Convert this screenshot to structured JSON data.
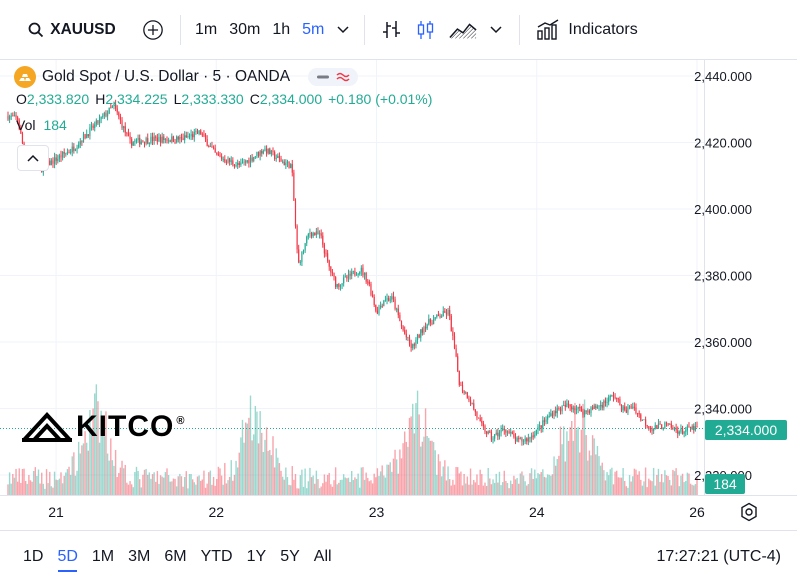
{
  "toolbar": {
    "symbol": "XAUUSD",
    "intervals": [
      "1m",
      "30m",
      "1h",
      "5m"
    ],
    "active_interval": "5m",
    "indicators_label": "Indicators"
  },
  "legend": {
    "title": "Gold Spot / U.S. Dollar · 5 · OANDA",
    "open_label": "O",
    "open": "2,333.820",
    "high_label": "H",
    "high": "2,334.225",
    "low_label": "L",
    "low": "2,333.330",
    "close_label": "C",
    "close": "2,334.000",
    "change": "+0.180 (+0.01%)",
    "vol_label": "Vol",
    "vol": "184"
  },
  "watermark": {
    "brand": "KITCO",
    "mark": "®"
  },
  "colors": {
    "up": "#22ab94",
    "down": "#f23645",
    "accent": "#2962ff",
    "gold": "#f5a623"
  },
  "chart_data": {
    "type": "candlestick",
    "title": "Gold Spot / U.S. Dollar · 5 · OANDA",
    "y_ticks": [
      "2,440.000",
      "2,420.000",
      "2,400.000",
      "2,380.000",
      "2,360.000",
      "2,340.000",
      "2,320.000"
    ],
    "y_tick_values": [
      2440,
      2420,
      2400,
      2380,
      2360,
      2340,
      2320
    ],
    "ylim": [
      2312,
      2448
    ],
    "x_ticks": [
      "21",
      "22",
      "23",
      "24",
      "26"
    ],
    "x_tick_positions": [
      0.4,
      1.4,
      2.4,
      3.4,
      4.4
    ],
    "xlim": [
      0.1,
      4.4
    ],
    "last_price": "2,334.000",
    "last_price_value": 2334,
    "last_volume": "184",
    "grid": true,
    "price_path": [
      {
        "x": 0.1,
        "y": 2428
      },
      {
        "x": 0.16,
        "y": 2427
      },
      {
        "x": 0.21,
        "y": 2415
      },
      {
        "x": 0.3,
        "y": 2412
      },
      {
        "x": 0.5,
        "y": 2418
      },
      {
        "x": 0.62,
        "y": 2424
      },
      {
        "x": 0.76,
        "y": 2431
      },
      {
        "x": 0.86,
        "y": 2420
      },
      {
        "x": 1.0,
        "y": 2421
      },
      {
        "x": 1.18,
        "y": 2421
      },
      {
        "x": 1.3,
        "y": 2423
      },
      {
        "x": 1.4,
        "y": 2416
      },
      {
        "x": 1.55,
        "y": 2413
      },
      {
        "x": 1.7,
        "y": 2418
      },
      {
        "x": 1.82,
        "y": 2414
      },
      {
        "x": 1.87,
        "y": 2413
      },
      {
        "x": 1.91,
        "y": 2383
      },
      {
        "x": 1.98,
        "y": 2393
      },
      {
        "x": 2.05,
        "y": 2392
      },
      {
        "x": 2.1,
        "y": 2383
      },
      {
        "x": 2.15,
        "y": 2377
      },
      {
        "x": 2.3,
        "y": 2382
      },
      {
        "x": 2.35,
        "y": 2378
      },
      {
        "x": 2.4,
        "y": 2369
      },
      {
        "x": 2.45,
        "y": 2373
      },
      {
        "x": 2.5,
        "y": 2373
      },
      {
        "x": 2.56,
        "y": 2364
      },
      {
        "x": 2.62,
        "y": 2358
      },
      {
        "x": 2.7,
        "y": 2365
      },
      {
        "x": 2.8,
        "y": 2368
      },
      {
        "x": 2.85,
        "y": 2369
      },
      {
        "x": 2.88,
        "y": 2360
      },
      {
        "x": 2.92,
        "y": 2347
      },
      {
        "x": 2.98,
        "y": 2343
      },
      {
        "x": 3.05,
        "y": 2335
      },
      {
        "x": 3.12,
        "y": 2331
      },
      {
        "x": 3.2,
        "y": 2334
      },
      {
        "x": 3.28,
        "y": 2330
      },
      {
        "x": 3.35,
        "y": 2331
      },
      {
        "x": 3.43,
        "y": 2335
      },
      {
        "x": 3.5,
        "y": 2339
      },
      {
        "x": 3.6,
        "y": 2341
      },
      {
        "x": 3.7,
        "y": 2339
      },
      {
        "x": 3.8,
        "y": 2341
      },
      {
        "x": 3.88,
        "y": 2344
      },
      {
        "x": 3.95,
        "y": 2339
      },
      {
        "x": 4.0,
        "y": 2341
      },
      {
        "x": 4.05,
        "y": 2337
      },
      {
        "x": 4.12,
        "y": 2334
      },
      {
        "x": 4.2,
        "y": 2335
      },
      {
        "x": 4.3,
        "y": 2333
      },
      {
        "x": 4.37,
        "y": 2334
      }
    ]
  },
  "bottombar": {
    "ranges": [
      "1D",
      "5D",
      "1M",
      "3M",
      "6M",
      "YTD",
      "1Y",
      "5Y",
      "All"
    ],
    "active_range": "5D",
    "time": "17:27:21",
    "timezone": "(UTC-4)"
  }
}
